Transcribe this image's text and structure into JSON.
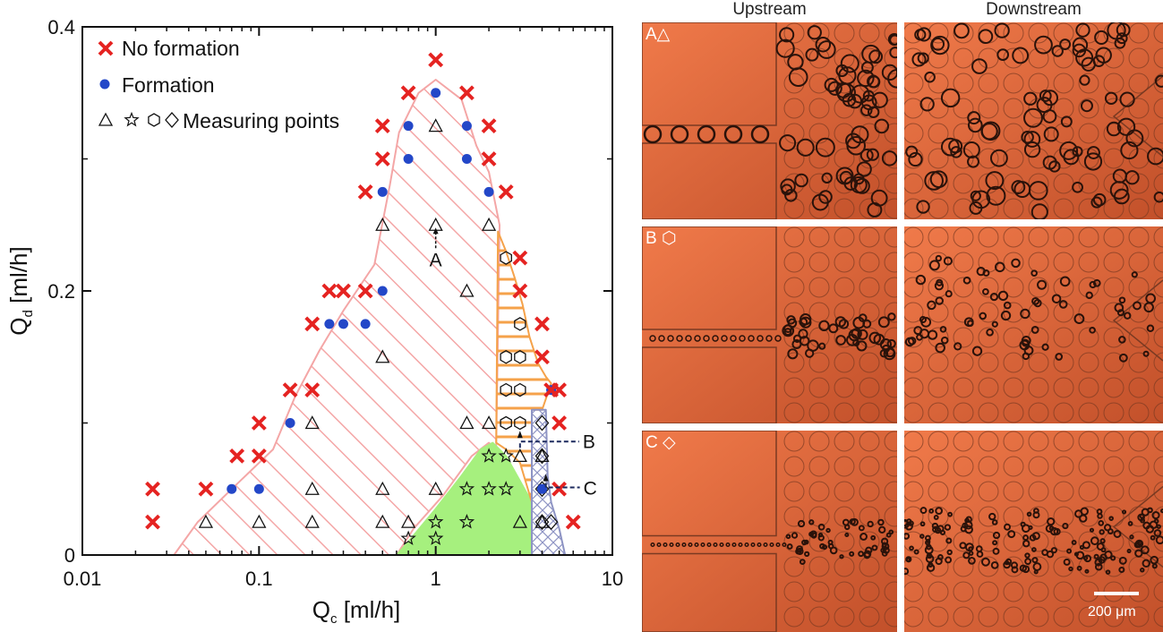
{
  "chart_data": {
    "type": "scatter",
    "x_axis": {
      "label": "Q",
      "label_sub": "c",
      "label_unit": " [ml/h]",
      "scale": "log",
      "range": [
        0.01,
        10
      ],
      "ticks": [
        0.01,
        0.1,
        1,
        10
      ],
      "tick_labels": [
        "0.01",
        "0.1",
        "1",
        "10"
      ]
    },
    "y_axis": {
      "label": "Q",
      "label_sub": "d",
      "label_unit": " [ml/h]",
      "scale": "linear",
      "range": [
        0,
        0.4
      ],
      "ticks": [
        0,
        0.2,
        0.4
      ],
      "tick_labels": [
        "0",
        "0.2",
        "0.4"
      ]
    },
    "legend": {
      "placement": "top-left",
      "entries": [
        {
          "marker": "x",
          "label": "No formation",
          "color": "#e52321"
        },
        {
          "marker": "dot",
          "label": "Formation",
          "color": "#2347c8"
        },
        {
          "marker": "triangle star hexagon diamond",
          "label": "Measuring points"
        }
      ]
    },
    "colors": {
      "no_formation": "#e52321",
      "formation": "#2347c8",
      "region_pink": "#f4a6a6",
      "region_orange": "#f5a24a",
      "region_green": "#a6f07e",
      "region_blue": "#8e94c4"
    },
    "no_formation": [
      [
        0.025,
        0.05
      ],
      [
        0.025,
        0.025
      ],
      [
        0.05,
        0.05
      ],
      [
        0.075,
        0.075
      ],
      [
        0.1,
        0.1
      ],
      [
        0.1,
        0.075
      ],
      [
        0.15,
        0.125
      ],
      [
        0.2,
        0.125
      ],
      [
        0.2,
        0.175
      ],
      [
        0.25,
        0.2
      ],
      [
        0.3,
        0.2
      ],
      [
        0.4,
        0.2
      ],
      [
        0.4,
        0.275
      ],
      [
        0.5,
        0.325
      ],
      [
        0.5,
        0.3
      ],
      [
        0.7,
        0.35
      ],
      [
        1.0,
        0.375
      ],
      [
        1.5,
        0.35
      ],
      [
        2.0,
        0.325
      ],
      [
        2.0,
        0.3
      ],
      [
        2.5,
        0.275
      ],
      [
        3.0,
        0.225
      ],
      [
        3.0,
        0.2
      ],
      [
        4.0,
        0.175
      ],
      [
        4.0,
        0.15
      ],
      [
        4.5,
        0.125
      ],
      [
        5.0,
        0.125
      ],
      [
        5.0,
        0.1
      ],
      [
        5.0,
        0.05
      ],
      [
        6.0,
        0.025
      ]
    ],
    "formation": [
      [
        0.07,
        0.05
      ],
      [
        0.1,
        0.05
      ],
      [
        0.15,
        0.1
      ],
      [
        0.25,
        0.175
      ],
      [
        0.3,
        0.175
      ],
      [
        0.4,
        0.175
      ],
      [
        0.5,
        0.2
      ],
      [
        0.5,
        0.275
      ],
      [
        0.7,
        0.325
      ],
      [
        0.7,
        0.3
      ],
      [
        1.0,
        0.35
      ],
      [
        1.5,
        0.325
      ],
      [
        1.5,
        0.3
      ],
      [
        2.0,
        0.275
      ],
      [
        4.5,
        0.125
      ],
      [
        4.0,
        0.05
      ]
    ],
    "measuring_points": {
      "triangle": [
        [
          0.05,
          0.025
        ],
        [
          0.1,
          0.025
        ],
        [
          0.2,
          0.025
        ],
        [
          0.2,
          0.05
        ],
        [
          0.2,
          0.1
        ],
        [
          0.5,
          0.025
        ],
        [
          0.5,
          0.05
        ],
        [
          0.5,
          0.15
        ],
        [
          0.5,
          0.25
        ],
        [
          0.7,
          0.025
        ],
        [
          1.0,
          0.05
        ],
        [
          1.0,
          0.25
        ],
        [
          1.0,
          0.325
        ],
        [
          1.5,
          0.1
        ],
        [
          1.5,
          0.2
        ],
        [
          2.0,
          0.1
        ],
        [
          2.0,
          0.25
        ],
        [
          3.0,
          0.025
        ],
        [
          3.0,
          0.075
        ],
        [
          4.0,
          0.025
        ],
        [
          4.0,
          0.075
        ]
      ],
      "star": [
        [
          0.7,
          0.0125
        ],
        [
          1.0,
          0.0125
        ],
        [
          1.0,
          0.025
        ],
        [
          1.5,
          0.025
        ],
        [
          1.5,
          0.05
        ],
        [
          2.0,
          0.05
        ],
        [
          2.0,
          0.075
        ],
        [
          2.5,
          0.05
        ],
        [
          2.5,
          0.075
        ]
      ],
      "hexagon": [
        [
          2.5,
          0.225
        ],
        [
          2.5,
          0.1
        ],
        [
          3.0,
          0.1
        ],
        [
          2.5,
          0.15
        ],
        [
          3.0,
          0.15
        ],
        [
          3.0,
          0.175
        ],
        [
          3.0,
          0.125
        ],
        [
          2.5,
          0.125
        ]
      ],
      "diamond": [
        [
          4.0,
          0.1
        ],
        [
          4.0,
          0.075
        ],
        [
          4.0,
          0.05
        ],
        [
          4.0,
          0.025
        ],
        [
          4.5,
          0.025
        ]
      ]
    },
    "annotations": [
      {
        "label": "A",
        "x": 1.0,
        "y": 0.25
      },
      {
        "label": "B",
        "x": 3.0,
        "y": 0.09
      },
      {
        "label": "C",
        "x": 4.2,
        "y": 0.06
      }
    ],
    "regions": {
      "pink": [
        [
          0.033,
          0
        ],
        [
          0.045,
          0.025
        ],
        [
          0.07,
          0.05
        ],
        [
          0.12,
          0.08
        ],
        [
          0.16,
          0.12
        ],
        [
          0.22,
          0.155
        ],
        [
          0.3,
          0.185
        ],
        [
          0.45,
          0.22
        ],
        [
          0.55,
          0.28
        ],
        [
          0.62,
          0.32
        ],
        [
          0.8,
          0.35
        ],
        [
          1.0,
          0.36
        ],
        [
          1.4,
          0.345
        ],
        [
          1.7,
          0.31
        ],
        [
          2.0,
          0.29
        ],
        [
          2.3,
          0.25
        ],
        [
          2.2,
          0.08
        ],
        [
          2.0,
          0.085
        ],
        [
          1.6,
          0.075
        ],
        [
          1.1,
          0.045
        ],
        [
          0.75,
          0.02
        ],
        [
          0.6,
          0
        ]
      ],
      "orange": [
        [
          2.25,
          0.245
        ],
        [
          2.5,
          0.23
        ],
        [
          2.8,
          0.21
        ],
        [
          3.1,
          0.19
        ],
        [
          3.4,
          0.165
        ],
        [
          3.8,
          0.145
        ],
        [
          4.2,
          0.135
        ],
        [
          4.5,
          0.13
        ],
        [
          4.0,
          0.11
        ],
        [
          3.5,
          0.11
        ],
        [
          3.5,
          0.04
        ],
        [
          3.0,
          0.07
        ],
        [
          2.5,
          0.08
        ],
        [
          2.2,
          0.085
        ]
      ],
      "green": [
        [
          0.6,
          0
        ],
        [
          0.7,
          0.01
        ],
        [
          1.0,
          0.035
        ],
        [
          1.4,
          0.06
        ],
        [
          1.8,
          0.08
        ],
        [
          2.1,
          0.085
        ],
        [
          2.5,
          0.075
        ],
        [
          3.5,
          0.04
        ],
        [
          3.5,
          0
        ]
      ],
      "blue": [
        [
          3.5,
          0
        ],
        [
          3.5,
          0.11
        ],
        [
          4.2,
          0.11
        ],
        [
          4.3,
          0.06
        ],
        [
          4.5,
          0.04
        ],
        [
          5.0,
          0.02
        ],
        [
          5.4,
          0
        ]
      ]
    }
  },
  "panels": {
    "headers": [
      "Upstream",
      "Downstream"
    ],
    "tags": [
      "A△",
      "B ⬡",
      "C ◇"
    ],
    "scale_bar": "200 μm"
  }
}
